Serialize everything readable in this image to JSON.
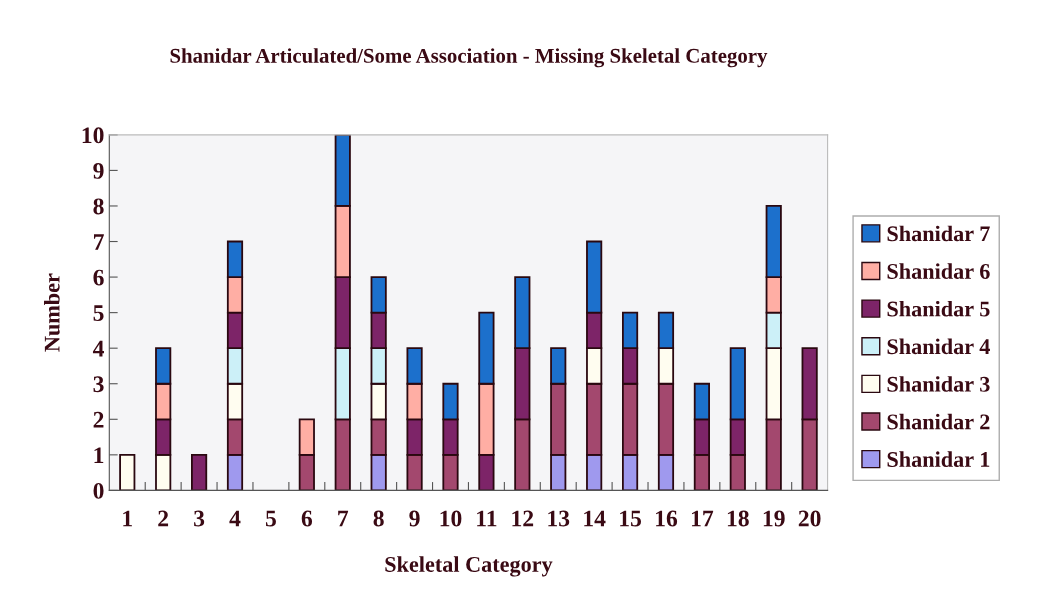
{
  "chart_data": {
    "type": "bar",
    "stacked": true,
    "title": "Shanidar Articulated/Some Association - Missing Skeletal Category",
    "xlabel": "Skeletal Category",
    "ylabel": "Number",
    "categories": [
      "1",
      "2",
      "3",
      "4",
      "5",
      "6",
      "7",
      "8",
      "9",
      "10",
      "11",
      "12",
      "13",
      "14",
      "15",
      "16",
      "17",
      "18",
      "19",
      "20"
    ],
    "series": [
      {
        "name": "Shanidar 1",
        "color": "#9f99ee",
        "values": [
          null,
          null,
          null,
          1,
          null,
          null,
          null,
          1,
          null,
          null,
          null,
          null,
          1,
          1,
          1,
          1,
          null,
          null,
          null,
          null
        ]
      },
      {
        "name": "Shanidar 2",
        "color": "#a3486e",
        "values": [
          null,
          null,
          null,
          1,
          null,
          1,
          2,
          1,
          1,
          1,
          null,
          2,
          2,
          2,
          2,
          2,
          1,
          1,
          2,
          2
        ]
      },
      {
        "name": "Shanidar 3",
        "color": "#fffdf0",
        "values": [
          1,
          1,
          null,
          1,
          null,
          null,
          null,
          1,
          null,
          null,
          null,
          null,
          null,
          1,
          null,
          1,
          null,
          null,
          2,
          null
        ]
      },
      {
        "name": "Shanidar 4",
        "color": "#ccf0f8",
        "values": [
          null,
          null,
          null,
          1,
          null,
          null,
          2,
          1,
          null,
          null,
          null,
          null,
          null,
          null,
          null,
          null,
          null,
          null,
          1,
          null
        ]
      },
      {
        "name": "Shanidar 5",
        "color": "#7d2468",
        "values": [
          null,
          1,
          1,
          1,
          null,
          null,
          2,
          1,
          1,
          1,
          1,
          2,
          null,
          1,
          1,
          null,
          1,
          1,
          null,
          2
        ]
      },
      {
        "name": "Shanidar 6",
        "color": "#ffaea4",
        "values": [
          null,
          1,
          null,
          1,
          null,
          1,
          2,
          null,
          1,
          null,
          2,
          null,
          null,
          null,
          null,
          null,
          null,
          null,
          1,
          null
        ]
      },
      {
        "name": "Shanidar 7",
        "color": "#1c70cc",
        "values": [
          null,
          1,
          null,
          1,
          null,
          null,
          2,
          1,
          1,
          1,
          2,
          2,
          1,
          2,
          1,
          1,
          1,
          2,
          2,
          null
        ]
      }
    ],
    "ylim": [
      0,
      10
    ],
    "yticks": [
      0,
      1,
      2,
      3,
      4,
      5,
      6,
      7,
      8,
      9,
      10
    ],
    "grid": false,
    "legend": "right"
  }
}
